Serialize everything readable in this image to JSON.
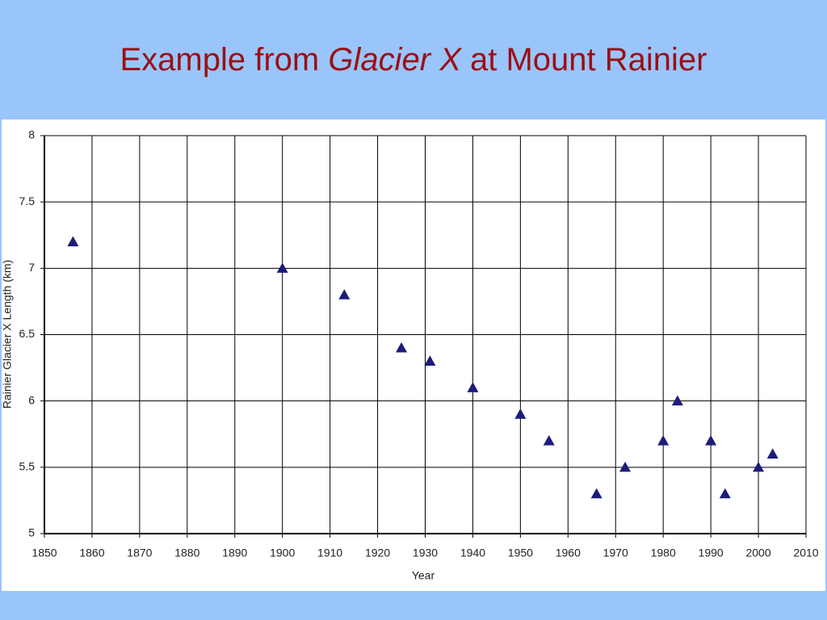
{
  "chart_data": {
    "type": "scatter",
    "title": [
      "Example from",
      "Glacier X",
      "at Mount Rainier"
    ],
    "x_label": "Year",
    "y_label": "Rainier Glacier X Length (km)",
    "x": [
      1856,
      1900,
      1913,
      1925,
      1931,
      1940,
      1950,
      1956,
      1966,
      1972,
      1980,
      1983,
      1990,
      1993,
      2000,
      2003
    ],
    "values": [
      7.2,
      7.0,
      6.8,
      6.4,
      6.3,
      6.1,
      5.9,
      5.7,
      5.3,
      5.5,
      5.7,
      6.0,
      5.7,
      5.3,
      5.5,
      5.6
    ],
    "color": "#1c1c7a",
    "marker": "triangle",
    "xlim": [
      1850,
      2010
    ],
    "xticks": [
      1850,
      1860,
      1870,
      1880,
      1890,
      1900,
      1910,
      1920,
      1930,
      1940,
      1950,
      1960,
      1970,
      1980,
      1990,
      2000,
      2010
    ],
    "ylim": [
      5,
      8
    ],
    "yticks": [
      5,
      5.5,
      6,
      6.5,
      7,
      7.5,
      8
    ],
    "grid": true
  }
}
